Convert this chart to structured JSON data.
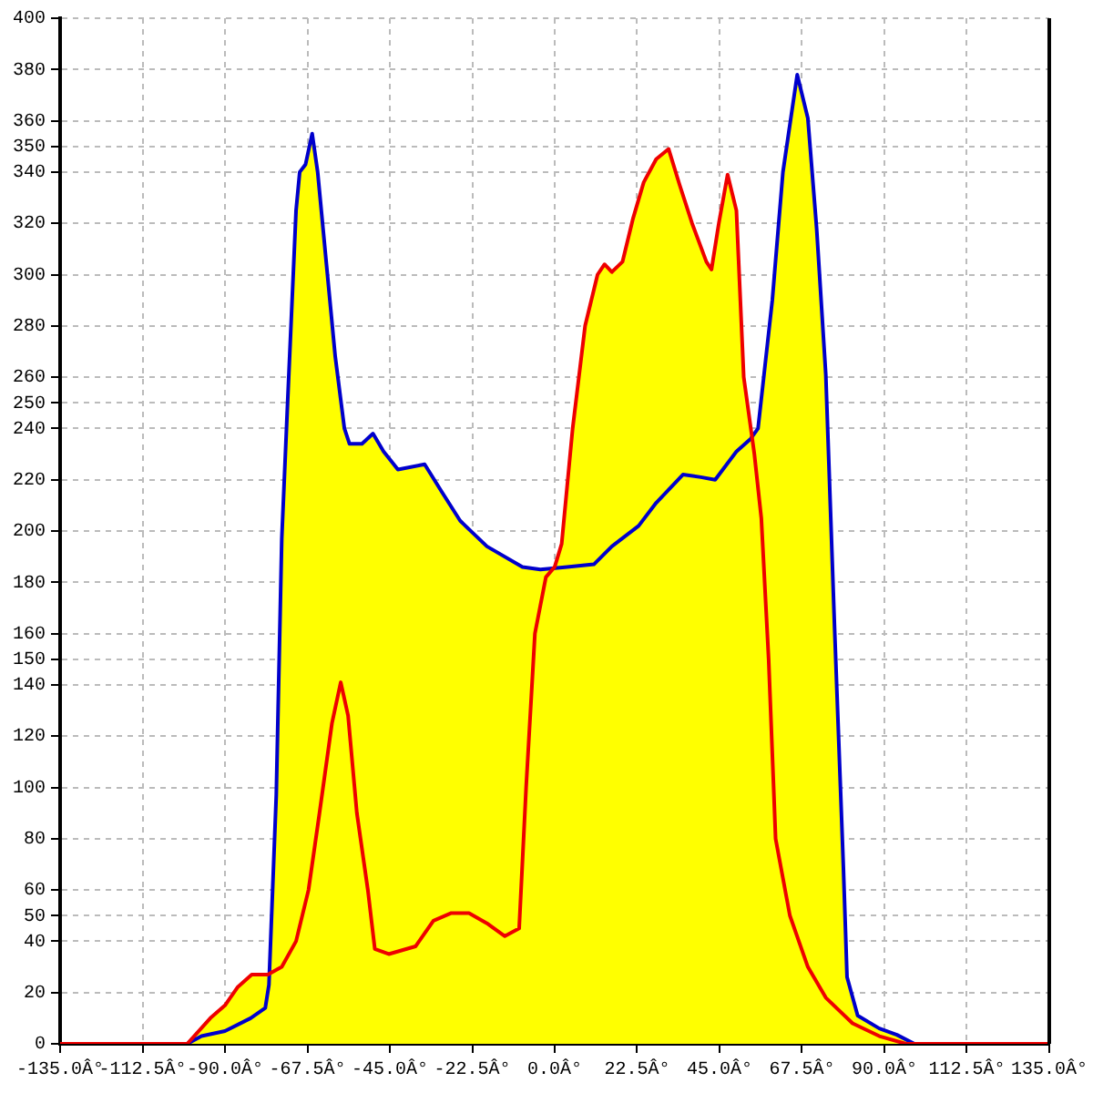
{
  "chart_data": {
    "type": "line",
    "grid": true,
    "xlim": [
      -135,
      135
    ],
    "xticks": [
      {
        "value": -135,
        "label": "-135.0Â°"
      },
      {
        "value": -112.5,
        "label": "-112.5Â°"
      },
      {
        "value": -90,
        "label": "-90.0Â°"
      },
      {
        "value": -67.5,
        "label": "-67.5Â°"
      },
      {
        "value": -45,
        "label": "-45.0Â°"
      },
      {
        "value": -22.5,
        "label": "-22.5Â°"
      },
      {
        "value": 0,
        "label": "0.0Â°"
      },
      {
        "value": 22.5,
        "label": "22.5Â°"
      },
      {
        "value": 45,
        "label": "45.0Â°"
      },
      {
        "value": 67.5,
        "label": "67.5Â°"
      },
      {
        "value": 90,
        "label": "90.0Â°"
      },
      {
        "value": 112.5,
        "label": "112.5Â°"
      },
      {
        "value": 135,
        "label": "135.0Â°"
      }
    ],
    "ylim": [
      0,
      400
    ],
    "yticks": [
      0,
      20,
      40,
      50,
      60,
      80,
      100,
      120,
      140,
      150,
      160,
      180,
      200,
      220,
      240,
      250,
      260,
      280,
      300,
      320,
      340,
      350,
      360,
      380,
      400
    ],
    "series": [
      {
        "color": "#0000cc",
        "x": [
          -100.3,
          -96.4,
          -90,
          -83,
          -79,
          -78,
          -77,
          -76,
          -74.5,
          -73,
          -70.6,
          -69.6,
          -68,
          -66.2,
          -64.7,
          -62.3,
          -59.9,
          -57.4,
          -56,
          -52.6,
          -49.6,
          -46.7,
          -42.8,
          -35.5,
          -30.7,
          -25.8,
          -18.5,
          -8.8,
          -3.9,
          3.4,
          10.7,
          15.6,
          22.9,
          27.7,
          35,
          39.9,
          43.8,
          49.6,
          53.5,
          55.5,
          59.4,
          62.3,
          66.2,
          69.1,
          71.5,
          74,
          76.4,
          78.8,
          79.8,
          82.7,
          88.6,
          93.4,
          98.2
        ],
        "values": [
          0,
          3,
          5,
          10,
          14,
          23,
          60,
          97,
          197,
          247,
          325,
          340,
          343,
          355,
          340,
          304,
          268,
          240,
          234,
          234,
          238,
          231,
          224,
          226,
          215,
          204,
          194,
          186,
          185,
          186,
          187,
          194,
          202,
          211,
          222,
          221,
          220,
          231,
          236,
          240,
          290,
          340,
          378,
          361,
          318,
          261,
          162,
          69,
          26,
          11,
          6,
          3.5,
          0
        ]
      },
      {
        "color": "#ee0000",
        "x": [
          -135,
          -100.3,
          -94,
          -90,
          -86.6,
          -82.7,
          -78.3,
          -74.5,
          -70.6,
          -67.2,
          -64.2,
          -60.8,
          -58.4,
          -56.4,
          -54,
          -51,
          -49.1,
          -45.3,
          -38,
          -33.1,
          -28.2,
          -23.4,
          -18.5,
          -13.6,
          -9.7,
          -7.8,
          -5.4,
          -2.4,
          0,
          1.9,
          4.9,
          8.3,
          11.7,
          13.6,
          15.6,
          18.5,
          21.4,
          24.3,
          27.7,
          31.1,
          34.1,
          37.5,
          41.4,
          42.8,
          44.8,
          47.2,
          49.6,
          51.6,
          54.5,
          56.4,
          58.4,
          60.3,
          64.2,
          69.1,
          74,
          81.3,
          88.6,
          95.9,
          135
        ],
        "values": [
          0,
          0,
          10,
          15,
          22,
          27,
          27,
          30,
          40,
          60,
          90,
          125,
          141,
          128,
          90,
          60,
          37,
          35,
          38,
          48,
          51,
          51,
          47,
          42,
          45,
          100,
          160,
          182,
          186,
          195,
          240,
          280,
          300,
          304,
          301,
          305,
          322,
          336,
          345,
          349,
          335,
          320,
          305,
          302,
          320,
          339,
          325,
          260,
          230,
          205,
          150,
          80,
          50,
          30,
          18,
          8,
          3,
          0,
          0
        ]
      }
    ]
  }
}
